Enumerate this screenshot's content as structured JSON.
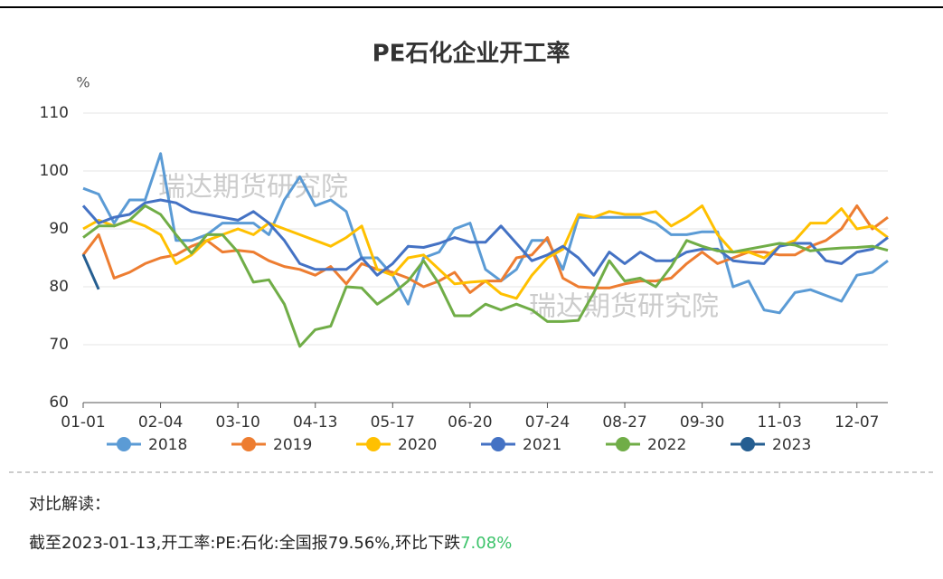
{
  "chart_data": {
    "type": "line",
    "title": "PE石化企业开工率",
    "y_unit": "%",
    "watermarks": [
      "瑞达期货研究院",
      "瑞达期货研究院"
    ],
    "categories": [
      "01-01",
      null,
      null,
      null,
      null,
      "02-04",
      null,
      null,
      null,
      null,
      "03-10",
      null,
      null,
      null,
      null,
      "04-13",
      null,
      null,
      null,
      null,
      "05-17",
      null,
      null,
      null,
      null,
      "06-20",
      null,
      null,
      null,
      null,
      "07-24",
      null,
      null,
      null,
      null,
      "08-27",
      null,
      null,
      null,
      null,
      "09-30",
      null,
      null,
      null,
      null,
      "11-03",
      null,
      null,
      null,
      null,
      "12-07",
      null,
      null
    ],
    "ylim": [
      60,
      110
    ],
    "yticks": [
      60,
      70,
      80,
      90,
      100,
      110
    ],
    "grid": true,
    "series": [
      {
        "name": "2018",
        "color": "#5b9bd5",
        "values": [
          97,
          96,
          91,
          95,
          95,
          103,
          88,
          88,
          89,
          91,
          91,
          91,
          89,
          95,
          99,
          94,
          95,
          93,
          85,
          85,
          82,
          77,
          85,
          86,
          90,
          91,
          83,
          81,
          83,
          88,
          88,
          83,
          92,
          92,
          92,
          92,
          92,
          91,
          89,
          89,
          89.5,
          89.5,
          80,
          81,
          76,
          75.5,
          79,
          79.5,
          78.5,
          77.5,
          82,
          82.5,
          84.5
        ]
      },
      {
        "name": "2019",
        "color": "#ed7d31",
        "values": [
          85.5,
          89,
          81.5,
          82.5,
          84,
          85,
          85.5,
          87,
          88,
          86,
          86.3,
          86,
          84.5,
          83.5,
          83,
          82,
          83.5,
          80.5,
          84,
          83,
          82.5,
          81.5,
          80,
          81,
          82.5,
          79,
          81,
          81,
          85,
          85.5,
          88.5,
          81.5,
          80,
          79.8,
          79.8,
          80.5,
          81,
          81,
          81.5,
          84,
          86,
          84,
          85,
          86,
          86,
          85.5,
          85.5,
          87,
          88,
          90,
          94,
          90,
          92
        ]
      },
      {
        "name": "2020",
        "color": "#ffc000",
        "values": [
          90,
          91.5,
          90.5,
          91.5,
          90.5,
          89,
          84,
          85.5,
          88,
          89,
          90,
          89,
          91,
          90,
          89,
          88,
          87,
          88.5,
          90.5,
          83,
          82,
          85,
          85.5,
          83,
          80.5,
          80.8,
          81,
          78.8,
          78,
          82,
          85,
          86.5,
          92.5,
          92,
          93,
          92.5,
          92.5,
          93,
          90.5,
          92,
          94,
          89,
          86,
          86,
          85,
          87,
          88,
          91,
          91,
          93.5,
          90,
          90.5,
          88.5
        ]
      },
      {
        "name": "2021",
        "color": "#4472c4",
        "values": [
          94,
          91,
          92,
          92.5,
          94.5,
          95,
          94.5,
          93,
          92.5,
          92,
          91.5,
          93,
          91,
          88,
          84,
          83,
          83,
          83,
          85,
          82,
          84,
          87,
          86.8,
          87.5,
          88.5,
          87.7,
          87.7,
          90.5,
          87.5,
          84.5,
          85.5,
          87,
          85,
          82,
          86,
          84,
          86,
          84.5,
          84.5,
          86,
          86.5,
          86.5,
          84.5,
          84.2,
          84,
          87,
          87.5,
          87.5,
          84.5,
          84,
          86,
          86.5,
          88.5
        ]
      },
      {
        "name": "2022",
        "color": "#70ad47",
        "values": [
          88.5,
          90.5,
          90.5,
          91.5,
          94,
          92.5,
          89,
          85.8,
          89,
          89,
          86,
          80.8,
          81.2,
          77,
          69.7,
          72.6,
          73.2,
          80,
          79.8,
          77,
          78.8,
          81,
          84.5,
          80.5,
          75,
          75,
          77,
          76,
          77,
          76,
          74,
          74,
          74.2,
          79,
          84.5,
          81,
          81.5,
          80,
          83.5,
          88,
          87,
          86.2,
          86,
          86.5,
          87,
          87.5,
          87.2,
          86.2,
          86.5,
          86.7,
          86.8,
          87,
          86.3
        ]
      },
      {
        "name": "2023",
        "color": "#255e91",
        "values": [
          85.6,
          79.56,
          null,
          null,
          null,
          null,
          null,
          null,
          null,
          null,
          null,
          null,
          null,
          null,
          null,
          null,
          null,
          null,
          null,
          null,
          null,
          null,
          null,
          null,
          null,
          null,
          null,
          null,
          null,
          null,
          null,
          null,
          null,
          null,
          null,
          null,
          null,
          null,
          null,
          null,
          null,
          null,
          null,
          null,
          null,
          null,
          null,
          null,
          null,
          null,
          null,
          null,
          null
        ]
      }
    ]
  },
  "commentary": {
    "heading": "对比解读：",
    "text": "截至2023-01-13,开工率:PE:石化:全国报79.56%,环比下跌",
    "highlight": "7.08%"
  }
}
